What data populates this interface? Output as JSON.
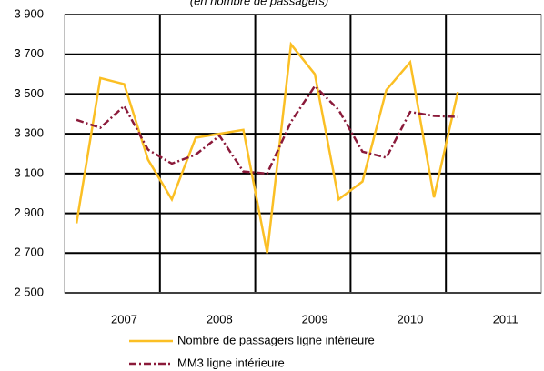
{
  "chart_data": {
    "type": "line",
    "subtitle": "(en nombre de passagers)",
    "categories": [
      null,
      null,
      "2007",
      null,
      null,
      null,
      "2008",
      null,
      null,
      null,
      "2009",
      null,
      null,
      null,
      "2010",
      null,
      null,
      null,
      "2011",
      null
    ],
    "series": [
      {
        "name": "Nombre de passagers ligne intérieure",
        "color": "#fbbf24",
        "dash": "none",
        "values": [
          2850,
          3580,
          3550,
          3170,
          2970,
          3280,
          3300,
          3320,
          2700,
          3750,
          3600,
          2970,
          3060,
          3520,
          3660,
          2980,
          3510,
          null,
          null,
          null
        ]
      },
      {
        "name": "MM3 ligne intérieure",
        "color": "#8b1a3a",
        "dash": "8 3 2 3",
        "values": [
          3370,
          3330,
          3440,
          3220,
          3150,
          3195,
          3290,
          3110,
          3100,
          3360,
          3540,
          3420,
          3210,
          3180,
          3410,
          3390,
          3385,
          null,
          null,
          null
        ]
      }
    ],
    "ylim": [
      2500,
      3900
    ],
    "yticks": [
      {
        "value": 2500,
        "label": "2 500"
      },
      {
        "value": 2700,
        "label": "2 700"
      },
      {
        "value": 2900,
        "label": "2 900"
      },
      {
        "value": 3100,
        "label": "3 100"
      },
      {
        "value": 3300,
        "label": "3 300"
      },
      {
        "value": 3500,
        "label": "3 500"
      },
      {
        "value": 3700,
        "label": "3 700"
      },
      {
        "value": 3900,
        "label": "3 900"
      }
    ],
    "grid": true
  }
}
